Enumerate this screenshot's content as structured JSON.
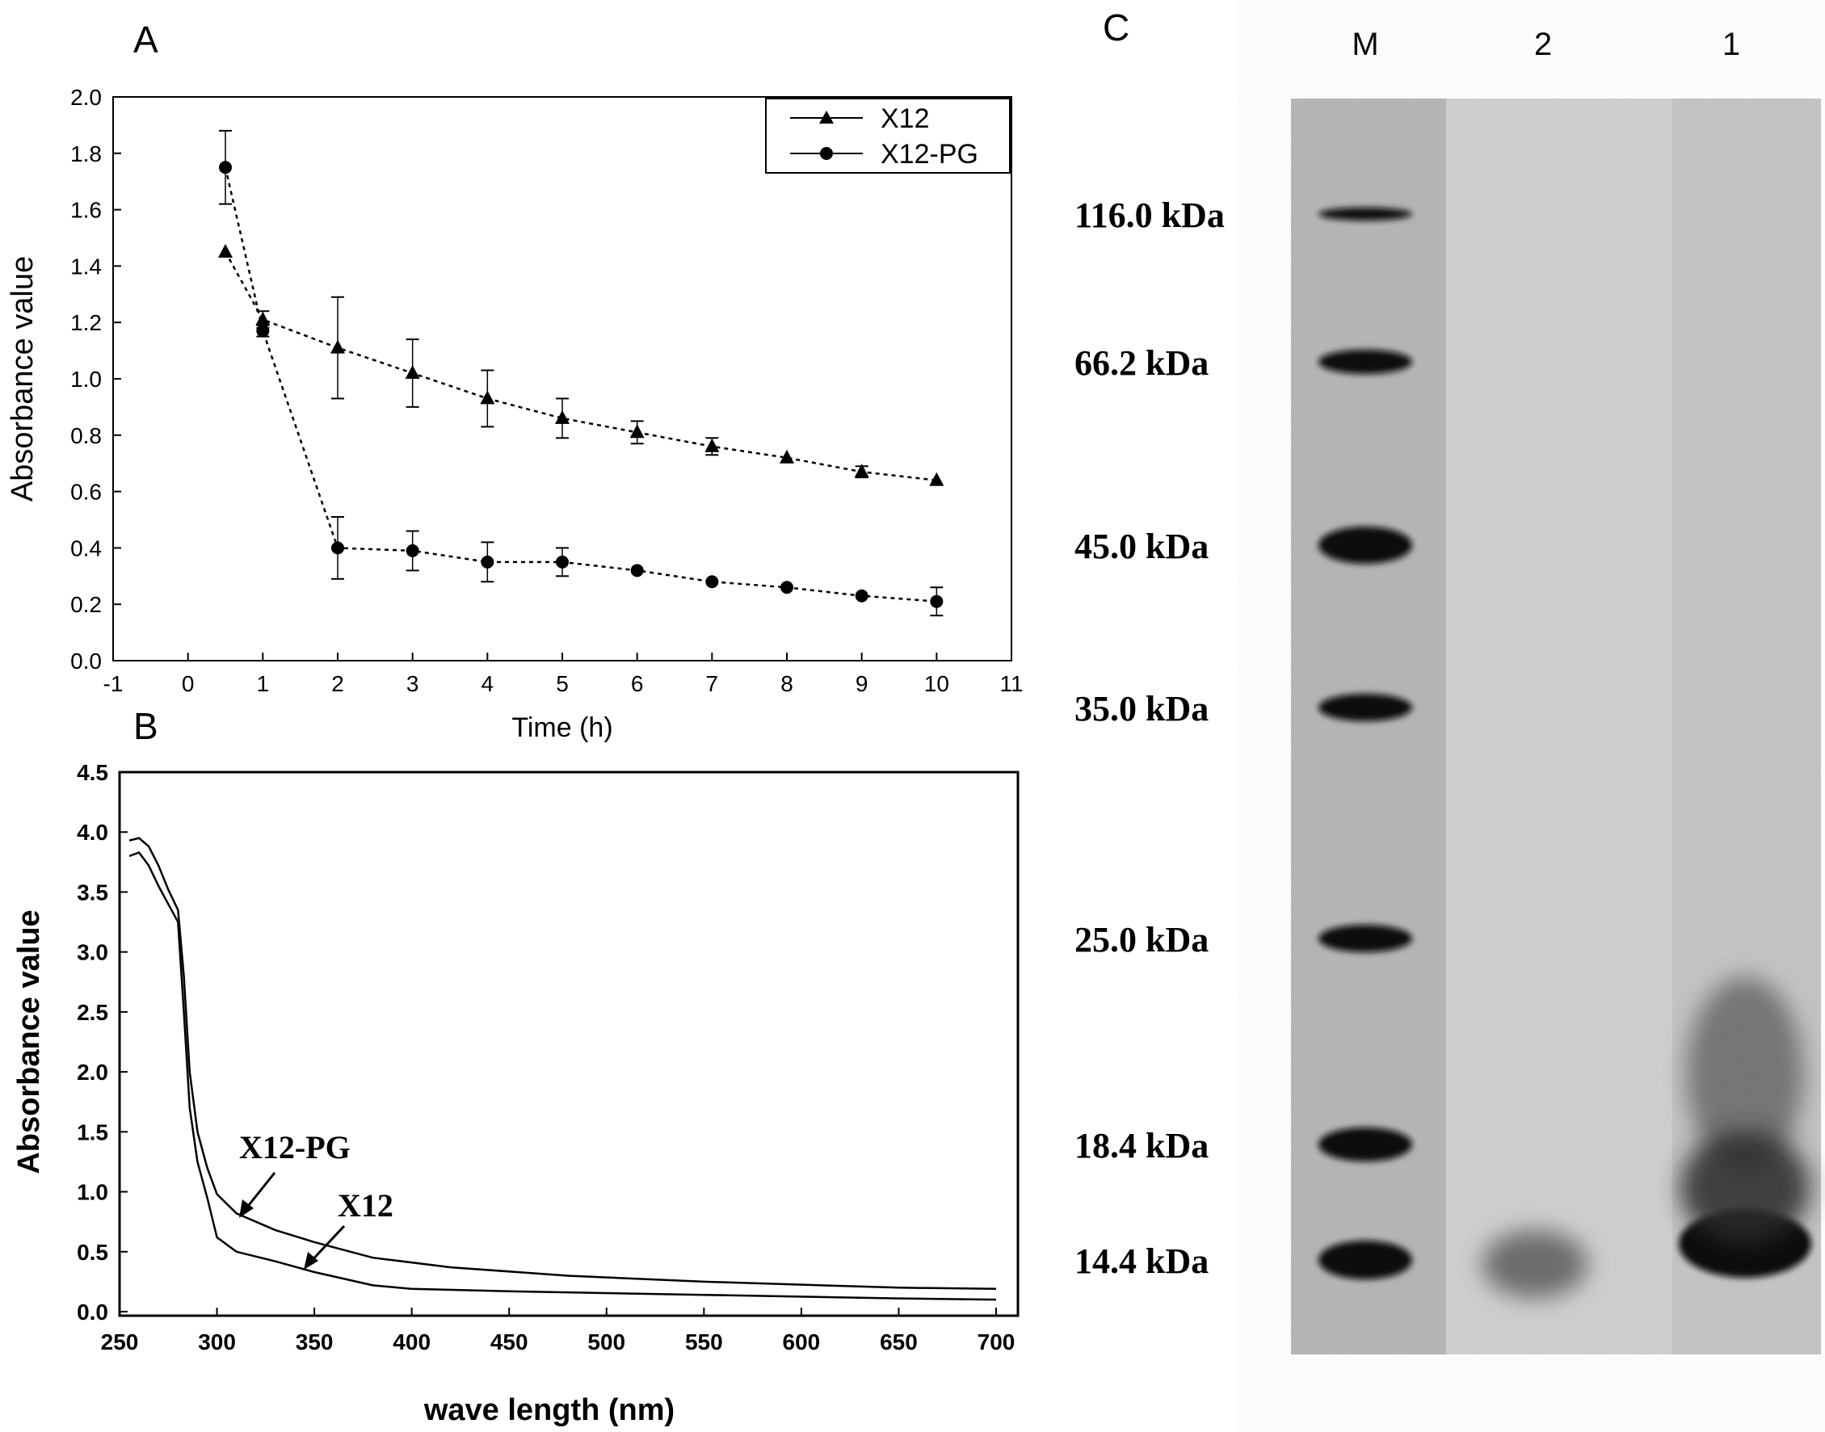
{
  "chart_data": [
    {
      "panel": "A",
      "type": "line",
      "xlabel": "Time (h)",
      "ylabel": "Absorbance value",
      "xlim": [
        -1,
        11
      ],
      "ylim": [
        0,
        2.0
      ],
      "x_ticks": [
        "-1",
        "0",
        "1",
        "2",
        "3",
        "4",
        "5",
        "6",
        "7",
        "8",
        "9",
        "10",
        "11"
      ],
      "y_ticks": [
        "0.0",
        "0.2",
        "0.4",
        "0.6",
        "0.8",
        "1.0",
        "1.2",
        "1.4",
        "1.6",
        "1.8",
        "2.0"
      ],
      "legend": {
        "position": "top-right"
      },
      "grid": false,
      "series": [
        {
          "name": "X12",
          "marker": "triangle",
          "x": [
            0.5,
            1,
            2,
            3,
            4,
            5,
            6,
            7,
            8,
            9,
            10
          ],
          "values": [
            1.45,
            1.21,
            1.11,
            1.02,
            0.93,
            0.86,
            0.81,
            0.76,
            0.72,
            0.67,
            0.64
          ],
          "errors": [
            0.01,
            0.03,
            0.18,
            0.12,
            0.1,
            0.07,
            0.04,
            0.03,
            0.01,
            0.02,
            0.01
          ]
        },
        {
          "name": "X12-PG",
          "marker": "circle",
          "x": [
            0.5,
            1,
            2,
            3,
            4,
            5,
            6,
            7,
            8,
            9,
            10
          ],
          "values": [
            1.75,
            1.17,
            0.4,
            0.39,
            0.35,
            0.35,
            0.32,
            0.28,
            0.26,
            0.23,
            0.21
          ],
          "errors": [
            0.13,
            0.02,
            0.11,
            0.07,
            0.07,
            0.05,
            0.01,
            0.01,
            0.01,
            0.01,
            0.05
          ]
        }
      ]
    },
    {
      "panel": "B",
      "type": "line",
      "xlabel": "wave length (nm)",
      "ylabel": "Absorbance value",
      "xlim": [
        250,
        700
      ],
      "ylim": [
        0,
        4.5
      ],
      "x_ticks": [
        "250",
        "300",
        "350",
        "400",
        "450",
        "500",
        "550",
        "600",
        "650",
        "700"
      ],
      "y_ticks": [
        "0.0",
        "0.5",
        "1.0",
        "1.5",
        "2.0",
        "2.5",
        "3.0",
        "3.5",
        "4.0",
        "4.5"
      ],
      "grid": false,
      "annotations": [
        "X12-PG",
        "X12"
      ],
      "series": [
        {
          "name": "X12-PG",
          "x": [
            255,
            260,
            265,
            270,
            275,
            280,
            283,
            286,
            290,
            295,
            300,
            310,
            330,
            350,
            380,
            420,
            480,
            550,
            650,
            700
          ],
          "values": [
            3.93,
            3.95,
            3.88,
            3.72,
            3.52,
            3.35,
            2.8,
            2.0,
            1.5,
            1.2,
            0.98,
            0.82,
            0.68,
            0.58,
            0.45,
            0.37,
            0.3,
            0.25,
            0.2,
            0.19
          ]
        },
        {
          "name": "X12",
          "x": [
            255,
            260,
            265,
            270,
            275,
            280,
            283,
            286,
            290,
            295,
            300,
            310,
            330,
            350,
            380,
            400,
            450,
            550,
            650,
            700
          ],
          "values": [
            3.8,
            3.83,
            3.72,
            3.55,
            3.4,
            3.25,
            2.5,
            1.7,
            1.25,
            0.95,
            0.62,
            0.5,
            0.42,
            0.33,
            0.22,
            0.19,
            0.17,
            0.14,
            0.11,
            0.1
          ]
        }
      ]
    },
    {
      "panel": "C",
      "type": "other",
      "lane_labels": [
        "M",
        "2",
        "1"
      ],
      "marker_labels": [
        "116.0 kDa",
        "66.2 kDa",
        "45.0 kDa",
        "35.0 kDa",
        "25.0 kDa",
        "18.4 kDa",
        "14.4 kDa"
      ],
      "marker_kda": [
        116.0,
        66.2,
        45.0,
        35.0,
        25.0,
        18.4,
        14.4
      ]
    }
  ],
  "panel_labels": {
    "a": "A",
    "b": "B",
    "c": "C"
  }
}
